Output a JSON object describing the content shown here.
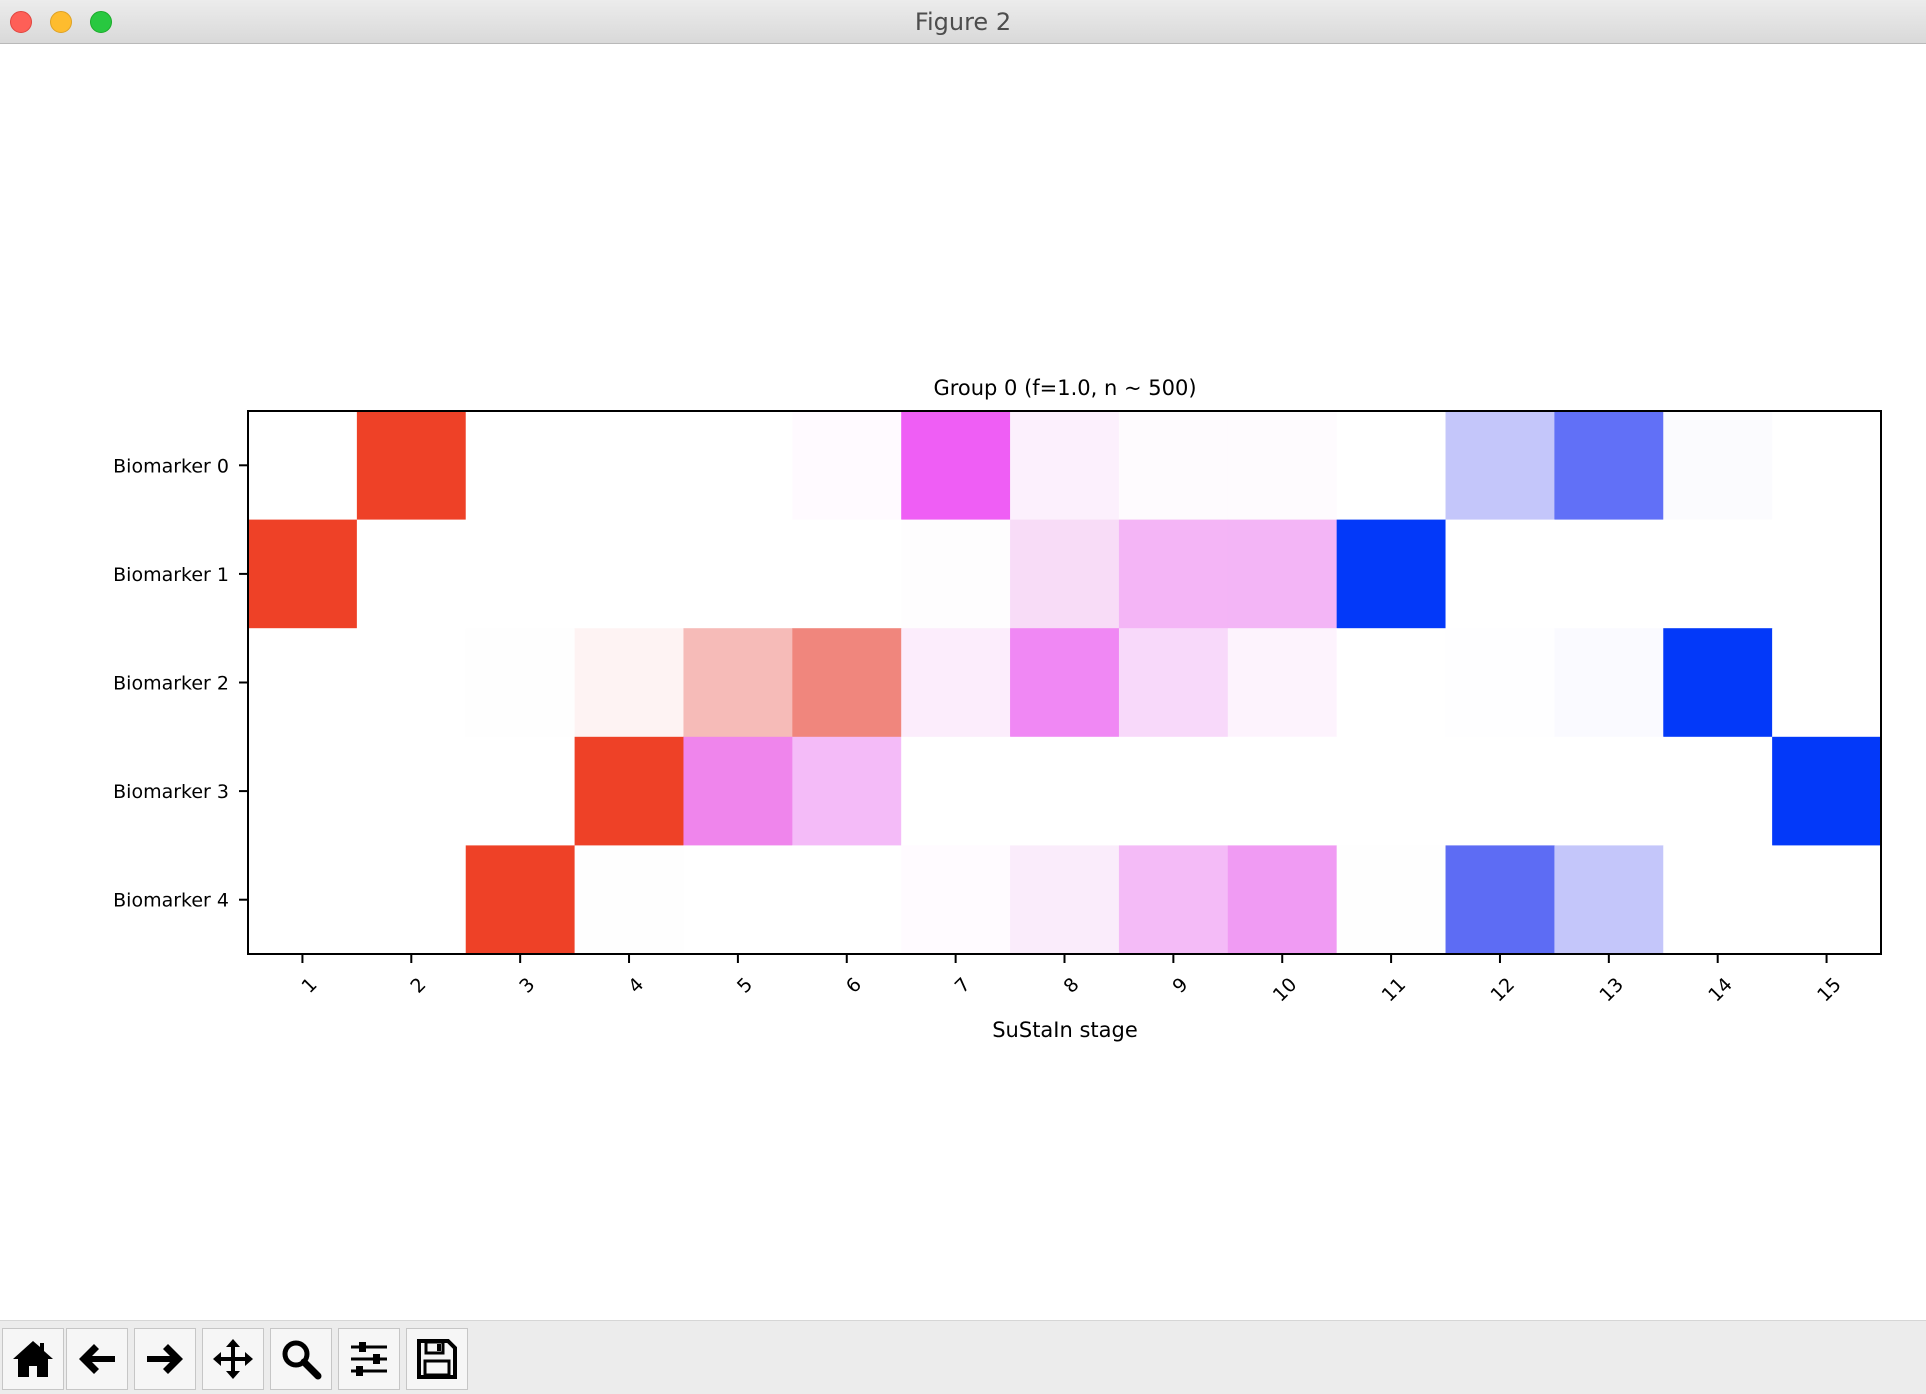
{
  "window": {
    "title": "Figure 2"
  },
  "toolbar": {
    "tools": [
      {
        "name": "home-button",
        "icon": "home-icon"
      },
      {
        "name": "back-button",
        "icon": "arrow-left-icon"
      },
      {
        "name": "forward-button",
        "icon": "arrow-right-icon"
      },
      {
        "name": "pan-button",
        "icon": "move-icon"
      },
      {
        "name": "zoom-button",
        "icon": "magnifier-icon"
      },
      {
        "name": "configure-subplots-button",
        "icon": "sliders-icon"
      },
      {
        "name": "save-button",
        "icon": "floppy-disk-icon"
      }
    ]
  },
  "chart_data": {
    "type": "heatmap",
    "title": "Group 0 (f=1.0, n ~ 500)",
    "xlabel": "SuStaIn stage",
    "ylabel": "",
    "x_ticks": [
      "1",
      "2",
      "3",
      "4",
      "5",
      "6",
      "7",
      "8",
      "9",
      "10",
      "11",
      "12",
      "13",
      "14",
      "15"
    ],
    "y_ticks": [
      "Biomarker 0",
      "Biomarker 1",
      "Biomarker 2",
      "Biomarker 3",
      "Biomarker 4"
    ],
    "cells": [
      [
        "#ffffff",
        "#ee4127",
        "#ffffff",
        "#ffffff",
        "#ffffff",
        "#fffaff",
        "#ef5ef5",
        "#fcf0fd",
        "#fefbfe",
        "#fefbfe",
        "#ffffff",
        "#c4c6fa",
        "#6170f7",
        "#fbfbfe",
        "#ffffff"
      ],
      [
        "#ee4127",
        "#ffffff",
        "#ffffff",
        "#ffffff",
        "#ffffff",
        "#ffffff",
        "#fefdfe",
        "#f8dcf7",
        "#f4b5f6",
        "#f3b5f6",
        "#0339f9",
        "#ffffff",
        "#ffffff",
        "#ffffff",
        "#ffffff"
      ],
      [
        "#ffffff",
        "#ffffff",
        "#fefefe",
        "#fef3f3",
        "#f6bbb8",
        "#f0867d",
        "#fcedfc",
        "#f088f4",
        "#f8d9fa",
        "#fdf3fd",
        "#ffffff",
        "#fefeff",
        "#fafaff",
        "#0339f9",
        "#ffffff"
      ],
      [
        "#ffffff",
        "#ffffff",
        "#ffffff",
        "#ee4127",
        "#ef85ec",
        "#f4bbf8",
        "#ffffff",
        "#ffffff",
        "#ffffff",
        "#ffffff",
        "#ffffff",
        "#ffffff",
        "#ffffff",
        "#ffffff",
        "#0339f9"
      ],
      [
        "#ffffff",
        "#ffffff",
        "#ee4127",
        "#fefefe",
        "#ffffff",
        "#ffffff",
        "#fffbff",
        "#faecfb",
        "#f4bbf7",
        "#f09bf3",
        "#fefefe",
        "#5d6cf4",
        "#c4c6fa",
        "#ffffff",
        "#ffffff"
      ]
    ],
    "colors": {
      "red": "#ee4127",
      "magenta": "#ef5ef5",
      "blue": "#0339f9"
    }
  }
}
